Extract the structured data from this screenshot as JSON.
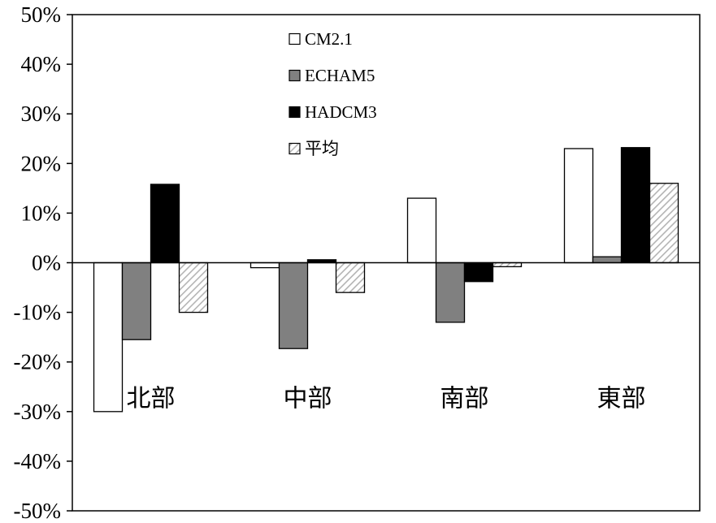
{
  "chart_data": {
    "type": "bar",
    "categories": [
      "北部",
      "中部",
      "南部",
      "東部"
    ],
    "series": [
      {
        "name": "CM2.1",
        "values": [
          -30,
          -1,
          13,
          23
        ],
        "color": "#ffffff",
        "pattern": "solid"
      },
      {
        "name": "ECHAM5",
        "values": [
          -15.5,
          -17.3,
          -12,
          1.2
        ],
        "color": "#808080",
        "pattern": "solid"
      },
      {
        "name": "HADCM3",
        "values": [
          15.8,
          0.6,
          -3.8,
          23.2
        ],
        "color": "#000000",
        "pattern": "solid"
      },
      {
        "name": "平均",
        "values": [
          -10,
          -6,
          -0.8,
          16
        ],
        "color": "#c8c8c8",
        "pattern": "diagonal-hatch"
      }
    ],
    "ylim": [
      -50,
      50
    ],
    "yticks": [
      50,
      40,
      30,
      20,
      10,
      0,
      -10,
      -20,
      -30,
      -40,
      -50
    ],
    "ytick_labels": [
      "50%",
      "40%",
      "30%",
      "20%",
      "10%",
      "0%",
      "-10%",
      "-20%",
      "-30%",
      "-40%",
      "-50%"
    ],
    "legend_position": "top-center",
    "grid": false
  }
}
